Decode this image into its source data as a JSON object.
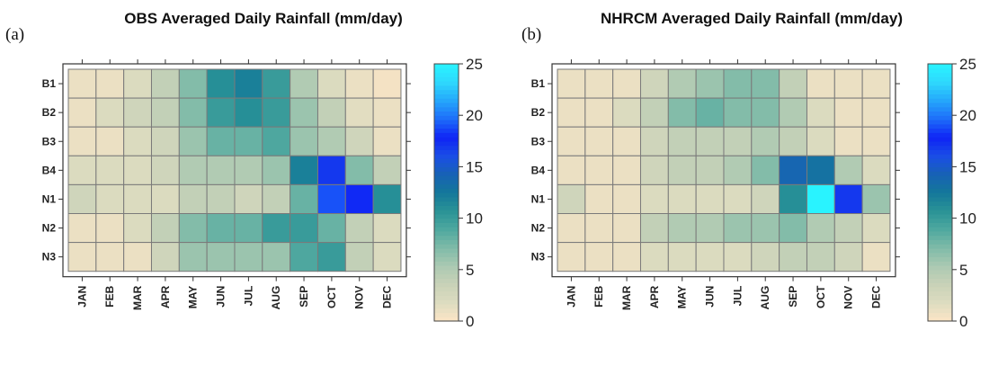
{
  "chart_data": [
    {
      "type": "heatmap",
      "panel_label": "(a)",
      "title": "OBS Averaged Daily Rainfall (mm/day)",
      "rows": [
        "B1",
        "B2",
        "B3",
        "B4",
        "N1",
        "N2",
        "N3"
      ],
      "columns": [
        "JAN",
        "FEB",
        "MAR",
        "APR",
        "MAY",
        "JUN",
        "JUL",
        "AUG",
        "SEP",
        "OCT",
        "NOV",
        "DEC"
      ],
      "values": [
        [
          1,
          1,
          2,
          4,
          7,
          11,
          12,
          10,
          5,
          2,
          1,
          0.5
        ],
        [
          1,
          2,
          3,
          4,
          7,
          10,
          11,
          10,
          6,
          4,
          1.5,
          1
        ],
        [
          1,
          1,
          2,
          3,
          6,
          8,
          8,
          9,
          6,
          5,
          3,
          1
        ],
        [
          2,
          2,
          2,
          3,
          5,
          5,
          5,
          6,
          12,
          17,
          7,
          4
        ],
        [
          3,
          2,
          2,
          2,
          4,
          4,
          3,
          4,
          8,
          19,
          18,
          11
        ],
        [
          1,
          1,
          2,
          4,
          7,
          8,
          8,
          10,
          10,
          8,
          4,
          2
        ],
        [
          1,
          1,
          1,
          3,
          6,
          6,
          6,
          6,
          9,
          10,
          4,
          2
        ]
      ],
      "colorbar": {
        "min": 0,
        "max": 25,
        "ticks": [
          0,
          5,
          10,
          15,
          20,
          25
        ]
      }
    },
    {
      "type": "heatmap",
      "panel_label": "(b)",
      "title": "NHRCM Averaged Daily Rainfall (mm/day)",
      "rows": [
        "B1",
        "B2",
        "B3",
        "B4",
        "N1",
        "N2",
        "N3"
      ],
      "columns": [
        "JAN",
        "FEB",
        "MAR",
        "APR",
        "MAY",
        "JUN",
        "JUL",
        "AUG",
        "SEP",
        "OCT",
        "NOV",
        "DEC"
      ],
      "values": [
        [
          1,
          1,
          1,
          3,
          5,
          6,
          7,
          7,
          4,
          1,
          1,
          1
        ],
        [
          1,
          1,
          2,
          4,
          7,
          8,
          7,
          7,
          5,
          2,
          1,
          1
        ],
        [
          1,
          1,
          1,
          3,
          4,
          4,
          4,
          5,
          4,
          2,
          1,
          1
        ],
        [
          1,
          1,
          1,
          3,
          4,
          4,
          5,
          7,
          14,
          13,
          5,
          2
        ],
        [
          3,
          1,
          1,
          2,
          2,
          2,
          2,
          3,
          11,
          25,
          17,
          6
        ],
        [
          1,
          1,
          1,
          4,
          5,
          5,
          6,
          6,
          7,
          5,
          4,
          2
        ],
        [
          1,
          1,
          1,
          2,
          2,
          2,
          2,
          3,
          4,
          4,
          3,
          1
        ]
      ],
      "colorbar": {
        "min": 0,
        "max": 25,
        "ticks": [
          0,
          5,
          10,
          15,
          20,
          25
        ]
      }
    }
  ],
  "colors": {
    "palette_stops": [
      "#fde5c6",
      "#dddcc0",
      "#c9d2b8",
      "#abc9b2",
      "#7fbba8",
      "#4fa89f",
      "#2a9396",
      "#14789a",
      "#1762b5",
      "#1a4ee6",
      "#0f23f5",
      "#1d6cf9",
      "#25a6fb",
      "#2ed8fd",
      "#29f3ff"
    ],
    "cell_border": "#7a7a7a",
    "frame": "#333333"
  }
}
